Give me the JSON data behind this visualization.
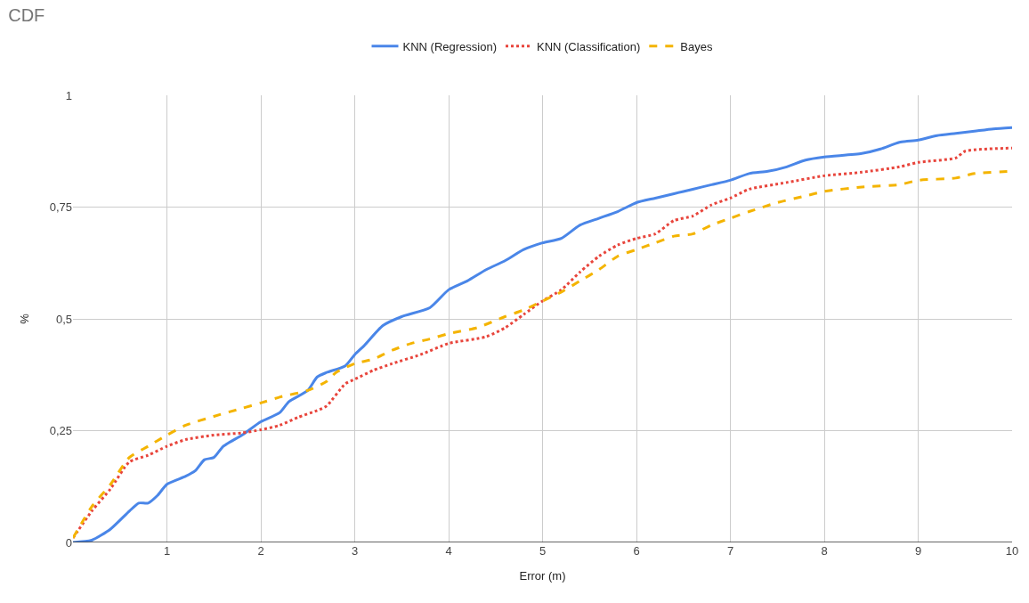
{
  "chart_data": {
    "type": "line",
    "title": "CDF",
    "xlabel": "Error (m)",
    "ylabel": "%",
    "xlim": [
      0,
      10
    ],
    "xticks": [
      1,
      2,
      3,
      4,
      5,
      6,
      7,
      8,
      9,
      10
    ],
    "ylim": [
      0,
      1
    ],
    "yticks": [
      0,
      {
        "value": 0.25,
        "label": "0,25"
      },
      {
        "value": 0.5,
        "label": "0,5"
      },
      {
        "value": 0.75,
        "label": "0,75"
      },
      1
    ],
    "grid": true,
    "legend": "top",
    "marker": "none",
    "series": [
      {
        "name": "KNN (Regression)",
        "color": "#4a86e8",
        "line_style": "solid",
        "x": [
          0,
          0.2,
          0.4,
          0.6,
          0.7,
          0.8,
          0.9,
          1.0,
          1.2,
          1.3,
          1.4,
          1.5,
          1.6,
          1.8,
          2.0,
          2.2,
          2.3,
          2.5,
          2.6,
          2.7,
          2.9,
          3.0,
          3.1,
          3.3,
          3.5,
          3.8,
          4.0,
          4.2,
          4.4,
          4.6,
          4.8,
          5.0,
          5.2,
          5.4,
          5.6,
          5.8,
          6.0,
          6.2,
          6.4,
          6.6,
          6.8,
          7.0,
          7.2,
          7.4,
          7.6,
          7.8,
          8.0,
          8.4,
          8.6,
          8.8,
          9.0,
          9.2,
          9.4,
          9.6,
          9.8,
          10
        ],
        "values": [
          0,
          0.005,
          0.03,
          0.07,
          0.088,
          0.088,
          0.105,
          0.13,
          0.148,
          0.16,
          0.185,
          0.19,
          0.215,
          0.24,
          0.27,
          0.29,
          0.315,
          0.34,
          0.37,
          0.38,
          0.395,
          0.42,
          0.44,
          0.485,
          0.505,
          0.525,
          0.565,
          0.585,
          0.61,
          0.63,
          0.655,
          0.67,
          0.68,
          0.71,
          0.725,
          0.74,
          0.76,
          0.77,
          0.78,
          0.79,
          0.8,
          0.81,
          0.825,
          0.83,
          0.84,
          0.855,
          0.862,
          0.87,
          0.88,
          0.895,
          0.9,
          0.91,
          0.915,
          0.92,
          0.925,
          0.928
        ]
      },
      {
        "name": "KNN (Classification)",
        "color": "#e8453c",
        "line_style": "dotted",
        "x": [
          0,
          0.2,
          0.4,
          0.6,
          0.8,
          1.0,
          1.2,
          1.5,
          1.8,
          2.0,
          2.2,
          2.4,
          2.6,
          2.7,
          2.9,
          3.0,
          3.2,
          3.4,
          3.7,
          4.0,
          4.4,
          4.6,
          4.8,
          5.0,
          5.2,
          5.4,
          5.6,
          5.8,
          6.0,
          6.2,
          6.4,
          6.6,
          6.8,
          7.0,
          7.2,
          7.6,
          8.0,
          8.4,
          8.8,
          9.0,
          9.4,
          9.5,
          10
        ],
        "values": [
          0.01,
          0.07,
          0.12,
          0.18,
          0.195,
          0.215,
          0.23,
          0.24,
          0.245,
          0.252,
          0.262,
          0.28,
          0.295,
          0.305,
          0.355,
          0.365,
          0.385,
          0.4,
          0.42,
          0.445,
          0.46,
          0.48,
          0.51,
          0.54,
          0.565,
          0.605,
          0.64,
          0.665,
          0.68,
          0.69,
          0.72,
          0.73,
          0.755,
          0.77,
          0.79,
          0.805,
          0.82,
          0.828,
          0.84,
          0.85,
          0.86,
          0.875,
          0.882
        ]
      },
      {
        "name": "Bayes",
        "color": "#f4b400",
        "line_style": "dashed",
        "x": [
          0,
          0.2,
          0.4,
          0.6,
          0.8,
          1.0,
          1.2,
          1.5,
          1.8,
          2.0,
          2.2,
          2.5,
          2.7,
          2.8,
          3.0,
          3.2,
          3.4,
          3.6,
          3.8,
          4.0,
          4.3,
          4.6,
          4.8,
          5.0,
          5.2,
          5.4,
          5.6,
          5.8,
          6.0,
          6.2,
          6.4,
          6.6,
          6.8,
          7.0,
          7.2,
          7.5,
          7.8,
          8.0,
          8.4,
          8.8,
          9.0,
          9.4,
          9.6,
          10
        ],
        "values": [
          0.01,
          0.08,
          0.13,
          0.19,
          0.215,
          0.24,
          0.262,
          0.282,
          0.3,
          0.312,
          0.325,
          0.34,
          0.36,
          0.38,
          0.4,
          0.41,
          0.43,
          0.445,
          0.455,
          0.467,
          0.48,
          0.505,
          0.52,
          0.54,
          0.56,
          0.585,
          0.61,
          0.64,
          0.655,
          0.67,
          0.685,
          0.69,
          0.71,
          0.725,
          0.74,
          0.76,
          0.775,
          0.785,
          0.795,
          0.8,
          0.81,
          0.815,
          0.825,
          0.83
        ]
      }
    ]
  }
}
